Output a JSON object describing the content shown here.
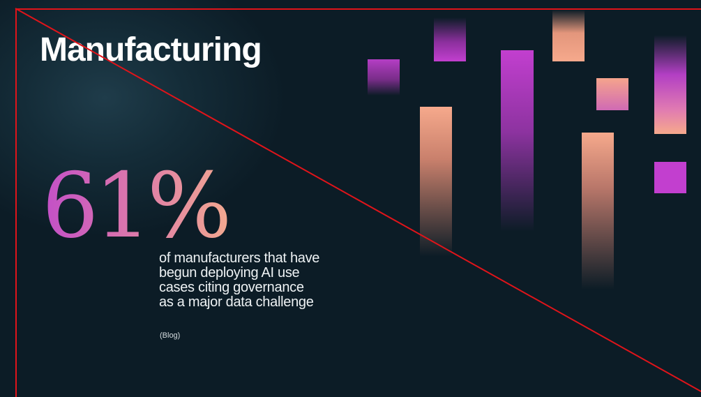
{
  "title": "Manufacturing",
  "stat": {
    "value": "61%"
  },
  "description": {
    "lines": [
      "of manufacturers that have",
      "begun deploying AI use",
      "cases citing governance",
      "as a major data challenge"
    ]
  },
  "source": "(Blog)",
  "colors": {
    "background": "#0c1c26",
    "magenta": "#c23fcf",
    "peach": "#f6a98c",
    "annotation_red": "#e0141a"
  }
}
